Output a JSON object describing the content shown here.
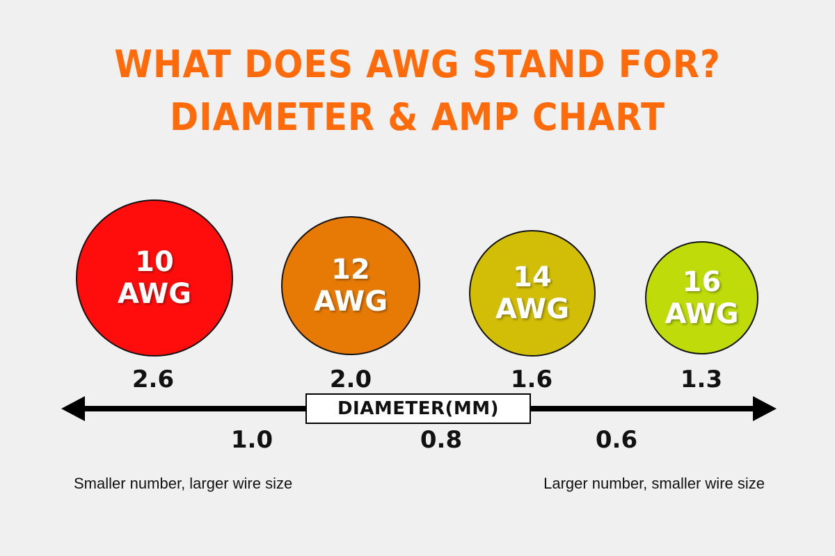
{
  "title": {
    "line1": "WHAT DOES AWG STAND FOR?",
    "line2": "DIAMETER & AMP CHART"
  },
  "colors": {
    "title": "#ff6b0a",
    "awg10": "#ff0d0d",
    "awg12": "#e77a05",
    "awg14": "#d2be06",
    "awg16": "#bfdc0a"
  },
  "wires": [
    {
      "gauge": "10",
      "unit": "AWG",
      "diameter": "2.6"
    },
    {
      "gauge": "12",
      "unit": "AWG",
      "diameter": "2.0"
    },
    {
      "gauge": "14",
      "unit": "AWG",
      "diameter": "1.6"
    },
    {
      "gauge": "16",
      "unit": "AWG",
      "diameter": "1.3"
    }
  ],
  "axis": {
    "label": "DIAMETER(MM)",
    "lower_values": [
      "1.0",
      "0.8",
      "0.6"
    ]
  },
  "notes": {
    "left": "Smaller number, larger wire size",
    "right": "Larger number, smaller wire size"
  }
}
